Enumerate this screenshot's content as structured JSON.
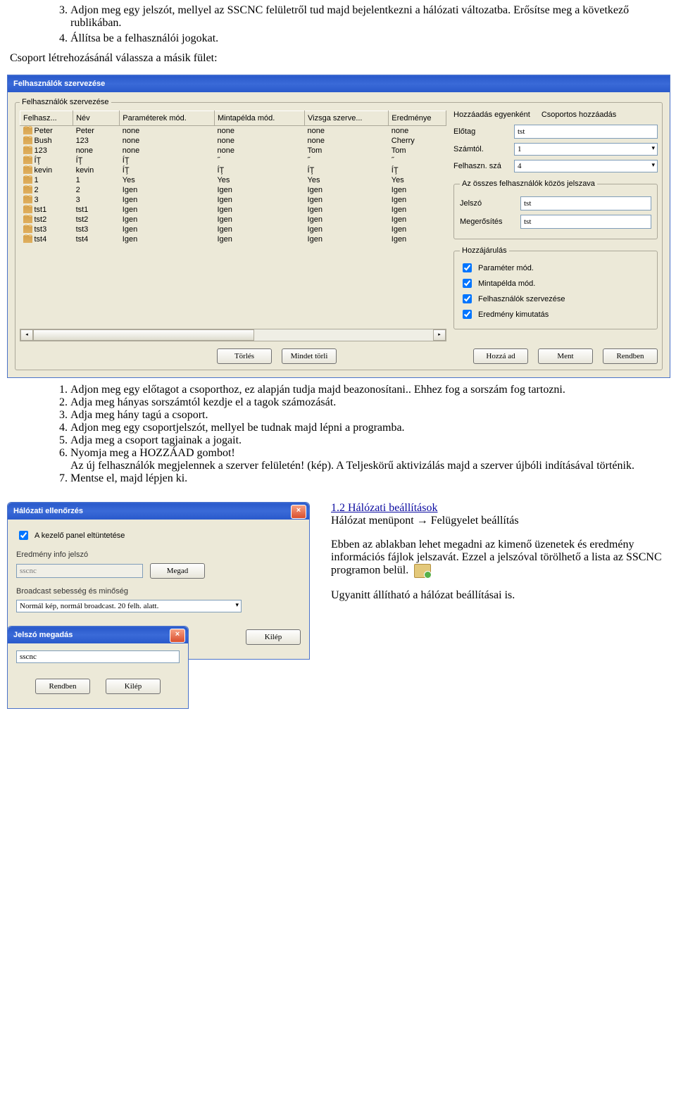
{
  "doc": {
    "ol1": [
      "Adjon meg egy jelszót, mellyel az SSCNC felületről tud majd bejelentkezni a hálózati változatba. Erősítse meg a következő rublikában.",
      "Állítsa be a felhasználói jogokat."
    ],
    "ol1_start": 3,
    "intro2": "Csoport létrehozásánál válassza a másik fület:",
    "ol2": [
      "Adjon meg egy előtagot a csoporthoz, ez alapján tudja majd beazonosítani.. Ehhez fog a sorszám fog tartozni.",
      "Adja meg hányas sorszámtól kezdje el a tagok számozását.",
      "Adja meg hány tagú a csoport.",
      "Adjon meg egy csoportjelszót, mellyel be tudnak majd lépni a programba.",
      "Adja meg a csoport tagjainak a jogait.",
      "Nyomja meg a HOZZÁAD gombot!\nAz új felhasználók megjelennek a szerver felületén! (kép). A Teljeskörű aktivizálás majd a szerver újbóli indításával történik.",
      "Mentse el, majd lépjen ki."
    ]
  },
  "win": {
    "title": "Felhasználók szervezése",
    "group_legend": "Felhasználók szervezése",
    "cols": [
      "Felhasz...",
      "Név",
      "Paraméterek mód.",
      "Mintapélda mód.",
      "Vizsga szerve...",
      "Eredménye"
    ],
    "rows": [
      [
        "Peter",
        "Peter",
        "none",
        "none",
        "none",
        "none"
      ],
      [
        "Bush",
        "123",
        "none",
        "none",
        "none",
        "Cherry"
      ],
      [
        "123",
        "none",
        "none",
        "none",
        "Tom",
        "Tom"
      ],
      [
        "ÍŢ",
        "ÍŢ",
        "ÍŢ",
        "˝",
        "˝",
        "˝"
      ],
      [
        "kevin",
        "kevin",
        "ÍŢ",
        "ÍŢ",
        "ÍŢ",
        "ÍŢ"
      ],
      [
        "1",
        "1",
        "Yes",
        "Yes",
        "Yes",
        "Yes"
      ],
      [
        "2",
        "2",
        "Igen",
        "Igen",
        "Igen",
        "Igen"
      ],
      [
        "3",
        "3",
        "Igen",
        "Igen",
        "Igen",
        "Igen"
      ],
      [
        "tst1",
        "tst1",
        "Igen",
        "Igen",
        "Igen",
        "Igen"
      ],
      [
        "tst2",
        "tst2",
        "Igen",
        "Igen",
        "Igen",
        "Igen"
      ],
      [
        "tst3",
        "tst3",
        "Igen",
        "Igen",
        "Igen",
        "Igen"
      ],
      [
        "tst4",
        "tst4",
        "Igen",
        "Igen",
        "Igen",
        "Igen"
      ]
    ],
    "tabs": {
      "single": "Hozzáadás egyenként",
      "group": "Csoportos hozzáadás"
    },
    "fields": {
      "prefix_lbl": "Előtag",
      "prefix_val": "tst",
      "from_lbl": "Számtól.",
      "from_val": "1",
      "count_lbl": "Felhaszn. szá",
      "count_val": "4"
    },
    "pwgroup_legend": "Az összes felhasználók közös jelszava",
    "pw": {
      "pw_lbl": "Jelszó",
      "pw_val": "tst",
      "conf_lbl": "Megerősítés",
      "conf_val": "tst"
    },
    "perm_legend": "Hozzájárulás",
    "perms": [
      "Paraméter mód.",
      "Mintapélda mód.",
      "Felhasználók szervezése",
      "Eredmény kimutatás"
    ],
    "buttons": {
      "torles": "Törlés",
      "mindet": "Mindet törli",
      "hozzaad": "Hozzá ad",
      "ment": "Ment",
      "rendben": "Rendben"
    }
  },
  "netdlg": {
    "title": "Hálózati ellenőrzés",
    "chk_hide": "A kezelő panel eltüntetése",
    "pw_lbl": "Eredmény info jelszó",
    "pw_val": "sscnc",
    "btn_megad": "Megad",
    "bc_lbl": "Broadcast sebesség és minőség",
    "bc_val": "Normál kép, normál broadcast. 20 felh. alatt.",
    "btn_kilep": "Kilép"
  },
  "pwdlg": {
    "title": "Jelszó megadás",
    "val": "sscnc",
    "btn_ok": "Rendben",
    "btn_kilep": "Kilép"
  },
  "side": {
    "hdr": "1.2 Hálózati beállítások",
    "line1a": "Hálózat menüpont ",
    "arrow": "→",
    "line1b": " Felügyelet beállítás",
    "p2": "Ebben az ablakban lehet megadni az kimenő üzenetek és eredmény információs fájlok jelszavát. Ezzel a jelszóval törölhető a lista az SSCNC programon belül.",
    "p3": "Ugyanitt állítható a hálózat beállításai is."
  }
}
